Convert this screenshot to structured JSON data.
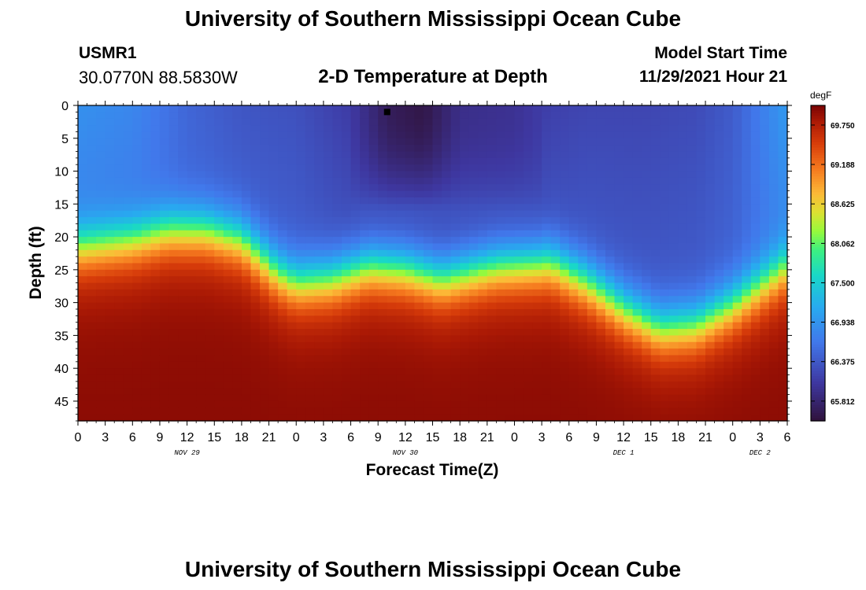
{
  "header": {
    "title": "University of Southern Mississippi Ocean Cube",
    "station": "USMR1",
    "coordinates": "30.0770N  88.5830W",
    "subtitle": "2-D Temperature at Depth",
    "model_start_label": "Model Start Time",
    "model_start_value": "11/29/2021 Hour 21",
    "footer_title": "University of Southern Mississippi Ocean Cube"
  },
  "chart_data": {
    "type": "heatmap",
    "title": "2-D Temperature at Depth",
    "xlabel": "Forecast Time(Z)",
    "ylabel": "Depth (ft)",
    "x_range_hours": [
      0,
      78
    ],
    "y_range_ft": [
      0,
      48
    ],
    "y_inverted": true,
    "x_ticks": [
      "0",
      "3",
      "6",
      "9",
      "12",
      "15",
      "18",
      "21",
      "0",
      "3",
      "6",
      "9",
      "12",
      "15",
      "18",
      "21",
      "0",
      "3",
      "6",
      "9",
      "12",
      "15",
      "18",
      "21",
      "0",
      "3",
      "6"
    ],
    "y_ticks": [
      "0",
      "5",
      "10",
      "15",
      "20",
      "25",
      "30",
      "35",
      "40",
      "45"
    ],
    "date_labels": [
      {
        "label": "NOV 29",
        "hour": 12
      },
      {
        "label": "NOV 30",
        "hour": 36
      },
      {
        "label": "DEC 1",
        "hour": 60
      },
      {
        "label": "DEC 2",
        "hour": 75
      }
    ],
    "colorbar": {
      "units": "degF",
      "min": 65.53,
      "max": 70.03,
      "tick_values": [
        69.75,
        69.188,
        68.625,
        68.062,
        67.5,
        66.938,
        66.375,
        65.812
      ],
      "tick_labels": [
        "69.750",
        "69.188",
        "68.625",
        "68.062",
        "67.500",
        "66.938",
        "66.375",
        "65.812"
      ]
    },
    "surface_temperature_degF": {
      "hours": [
        0,
        6,
        12,
        18,
        24,
        30,
        34,
        38,
        42,
        48,
        52,
        56,
        62,
        68,
        72,
        75,
        78
      ],
      "values": [
        66.9,
        66.8,
        66.5,
        66.35,
        66.3,
        66.1,
        65.7,
        65.6,
        65.95,
        66.0,
        66.15,
        66.2,
        66.2,
        66.25,
        66.4,
        66.7,
        67.0
      ]
    },
    "thermocline_depth_ft": {
      "hours": [
        0,
        6,
        10,
        14,
        18,
        22,
        24,
        28,
        32,
        36,
        40,
        46,
        52,
        56,
        60,
        64,
        68,
        72,
        75,
        78
      ],
      "values": [
        21,
        20,
        18.5,
        18.5,
        20,
        25,
        26.5,
        26,
        24,
        24.5,
        26,
        24,
        23.5,
        26.5,
        30.5,
        33.5,
        33,
        30,
        27,
        24
      ]
    },
    "bottom_temperature_degF": 69.95,
    "marker": {
      "hour": 34,
      "depth_ft": 1
    }
  }
}
